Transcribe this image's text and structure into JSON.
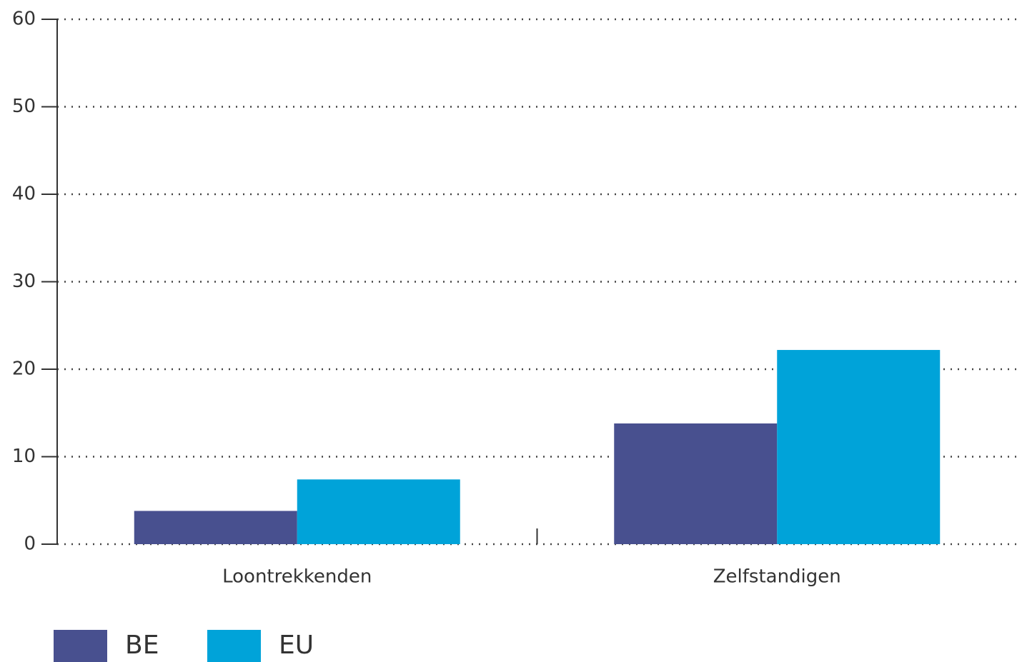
{
  "chart_data": {
    "type": "bar",
    "categories": [
      "Loontrekkenden",
      "Zelfstandigen"
    ],
    "series": [
      {
        "name": "BE",
        "color": "#48508f",
        "values": [
          3.8,
          13.8
        ]
      },
      {
        "name": "EU",
        "color": "#00a3d9",
        "values": [
          7.4,
          22.2
        ]
      }
    ],
    "ylim": [
      0,
      60
    ],
    "yticks": [
      0,
      10,
      20,
      30,
      40,
      50,
      60
    ],
    "grid": true,
    "legend": "bottom-left"
  }
}
